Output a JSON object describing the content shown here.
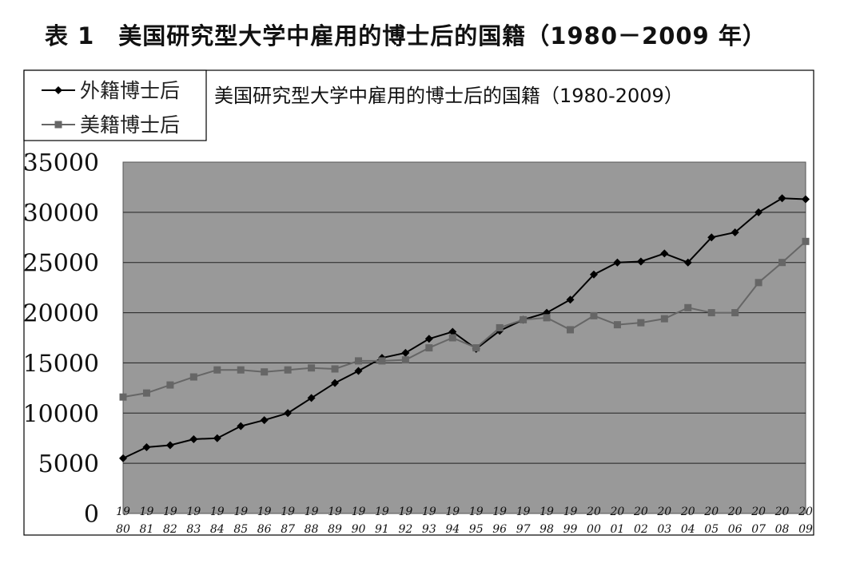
{
  "page": {
    "table_label": "表 1",
    "heading": "美国研究型大学中雇用的博士后的国籍（1980－2009 年）"
  },
  "chart_data": {
    "type": "line",
    "title": "美国研究型大学中雇用的博士后的国籍（1980-2009）",
    "xlabel": "",
    "ylabel": "",
    "ylim": [
      0,
      35000
    ],
    "yticks": [
      "0",
      "5000",
      "10000",
      "15000",
      "20000",
      "25000",
      "30000",
      "35000"
    ],
    "categories": [
      "1980",
      "1981",
      "1982",
      "1983",
      "1984",
      "1985",
      "1986",
      "1987",
      "1988",
      "1989",
      "1990",
      "1991",
      "1992",
      "1993",
      "1994",
      "1995",
      "1996",
      "1997",
      "1998",
      "1999",
      "2000",
      "2001",
      "2002",
      "2003",
      "2004",
      "2005",
      "2006",
      "2007",
      "2008",
      "2009"
    ],
    "category_labels_top": [
      "19",
      "19",
      "19",
      "19",
      "19",
      "19",
      "19",
      "19",
      "19",
      "19",
      "19",
      "19",
      "19",
      "19",
      "19",
      "19",
      "19",
      "19",
      "19",
      "19",
      "20",
      "20",
      "20",
      "20",
      "20",
      "20",
      "20",
      "20",
      "20",
      "20"
    ],
    "category_labels_bottom": [
      "80",
      "81",
      "82",
      "83",
      "84",
      "85",
      "86",
      "87",
      "88",
      "89",
      "90",
      "91",
      "92",
      "93",
      "94",
      "95",
      "96",
      "97",
      "98",
      "99",
      "00",
      "01",
      "02",
      "03",
      "04",
      "05",
      "06",
      "07",
      "08",
      "09"
    ],
    "grid": true,
    "legend_position": "top-left",
    "plot_background": "#999999",
    "series": [
      {
        "name": "外籍博士后",
        "color": "#000000",
        "marker": "diamond",
        "values": [
          5500,
          6600,
          6800,
          7400,
          7500,
          8700,
          9300,
          10000,
          11500,
          13000,
          14200,
          15500,
          16000,
          17400,
          18100,
          16400,
          18200,
          19300,
          20000,
          21300,
          23800,
          25000,
          25100,
          25900,
          25000,
          27500,
          28000,
          30000,
          31400,
          31300
        ]
      },
      {
        "name": "美籍博士后",
        "color": "#666666",
        "marker": "square",
        "values": [
          11600,
          12000,
          12800,
          13600,
          14300,
          14300,
          14100,
          14300,
          14500,
          14400,
          15200,
          15200,
          15300,
          16500,
          17500,
          16500,
          18500,
          19300,
          19500,
          18300,
          19700,
          18800,
          19000,
          19400,
          20500,
          20000,
          20000,
          23000,
          25000,
          27100
        ]
      }
    ]
  }
}
